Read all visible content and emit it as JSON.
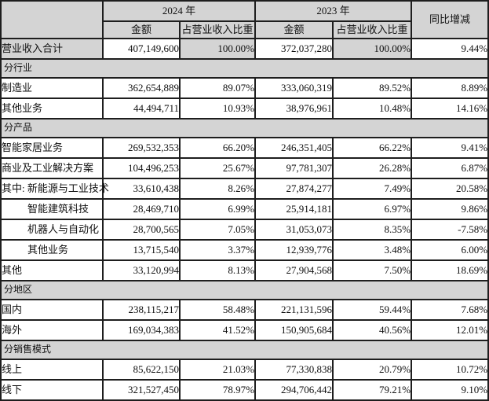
{
  "table": {
    "header": {
      "year_2024": "2024 年",
      "year_2023": "2023 年",
      "yoy": "同比增减",
      "amount": "金额",
      "ratio": "占营业收入比重"
    },
    "colors": {
      "header_bg": "#d4d4d4",
      "section_bg": "#d4d4d4",
      "highlight_bg": "#d4d4d4",
      "border": "#1e1e1e"
    },
    "rows": [
      {
        "type": "data",
        "label": "营业收入合计",
        "indent": 0,
        "highlight": true,
        "amount_2024": "407,149,600",
        "ratio_2024": "100.00%",
        "amount_2023": "372,037,280",
        "ratio_2023": "100.00%",
        "yoy": "9.44%"
      },
      {
        "type": "section",
        "label": "分行业"
      },
      {
        "type": "data",
        "label": "制造业",
        "indent": 0,
        "highlight": false,
        "amount_2024": "362,654,889",
        "ratio_2024": "89.07%",
        "amount_2023": "333,060,319",
        "ratio_2023": "89.52%",
        "yoy": "8.89%"
      },
      {
        "type": "data",
        "label": "其他业务",
        "indent": 0,
        "highlight": false,
        "amount_2024": "44,494,711",
        "ratio_2024": "10.93%",
        "amount_2023": "38,976,961",
        "ratio_2023": "10.48%",
        "yoy": "14.16%"
      },
      {
        "type": "section",
        "label": "分产品"
      },
      {
        "type": "data",
        "label": "智能家居业务",
        "indent": 0,
        "highlight": false,
        "amount_2024": "269,532,353",
        "ratio_2024": "66.20%",
        "amount_2023": "246,351,405",
        "ratio_2023": "66.22%",
        "yoy": "9.41%"
      },
      {
        "type": "data",
        "label": "商业及工业解决方案",
        "indent": 0,
        "highlight": false,
        "amount_2024": "104,496,253",
        "ratio_2024": "25.67%",
        "amount_2023": "97,781,307",
        "ratio_2023": "26.28%",
        "yoy": "6.87%"
      },
      {
        "type": "data",
        "label": "其中: 新能源与工业技术",
        "indent": 0,
        "highlight": false,
        "amount_2024": "33,610,438",
        "ratio_2024": "8.26%",
        "amount_2023": "27,874,277",
        "ratio_2023": "7.49%",
        "yoy": "20.58%"
      },
      {
        "type": "data",
        "label": "智能建筑科技",
        "indent": 1,
        "highlight": false,
        "amount_2024": "28,469,710",
        "ratio_2024": "6.99%",
        "amount_2023": "25,914,181",
        "ratio_2023": "6.97%",
        "yoy": "9.86%"
      },
      {
        "type": "data",
        "label": "机器人与自动化",
        "indent": 1,
        "highlight": false,
        "amount_2024": "28,700,565",
        "ratio_2024": "7.05%",
        "amount_2023": "31,053,073",
        "ratio_2023": "8.35%",
        "yoy": "-7.58%"
      },
      {
        "type": "data",
        "label": "其他业务",
        "indent": 1,
        "highlight": false,
        "amount_2024": "13,715,540",
        "ratio_2024": "3.37%",
        "amount_2023": "12,939,776",
        "ratio_2023": "3.48%",
        "yoy": "6.00%"
      },
      {
        "type": "data",
        "label": "其他",
        "indent": 0,
        "highlight": false,
        "amount_2024": "33,120,994",
        "ratio_2024": "8.13%",
        "amount_2023": "27,904,568",
        "ratio_2023": "7.50%",
        "yoy": "18.69%"
      },
      {
        "type": "section",
        "label": "分地区"
      },
      {
        "type": "data",
        "label": "国内",
        "indent": 0,
        "highlight": false,
        "amount_2024": "238,115,217",
        "ratio_2024": "58.48%",
        "amount_2023": "221,131,596",
        "ratio_2023": "59.44%",
        "yoy": "7.68%"
      },
      {
        "type": "data",
        "label": "海外",
        "indent": 0,
        "highlight": false,
        "amount_2024": "169,034,383",
        "ratio_2024": "41.52%",
        "amount_2023": "150,905,684",
        "ratio_2023": "40.56%",
        "yoy": "12.01%"
      },
      {
        "type": "section",
        "label": "分销售模式"
      },
      {
        "type": "data",
        "label": "线上",
        "indent": 0,
        "highlight": false,
        "amount_2024": "85,622,150",
        "ratio_2024": "21.03%",
        "amount_2023": "77,330,838",
        "ratio_2023": "20.79%",
        "yoy": "10.72%"
      },
      {
        "type": "data",
        "label": "线下",
        "indent": 0,
        "highlight": false,
        "amount_2024": "321,527,450",
        "ratio_2024": "78.97%",
        "amount_2023": "294,706,442",
        "ratio_2023": "79.21%",
        "yoy": "9.10%"
      }
    ]
  }
}
